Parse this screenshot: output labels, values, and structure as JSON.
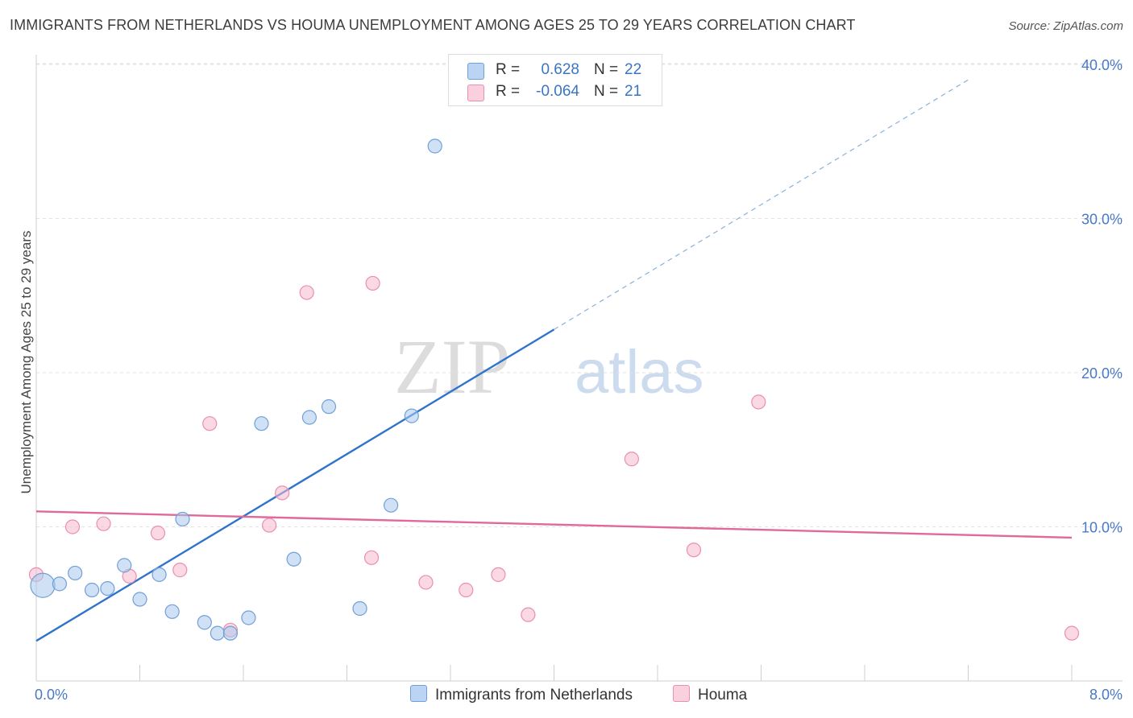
{
  "title": "IMMIGRANTS FROM NETHERLANDS VS HOUMA UNEMPLOYMENT AMONG AGES 25 TO 29 YEARS CORRELATION CHART",
  "source": "Source: ZipAtlas.com",
  "watermark": {
    "zip": "ZIP",
    "atlas": "atlas"
  },
  "colors": {
    "blue": "#a9c8ee",
    "blue_stroke": "#6fa0d8",
    "blue_line": "#2f74cc",
    "pink": "#f5b9cd",
    "pink_stroke": "#ea8fae",
    "pink_line": "#e0699a",
    "tick_text": "#4878c8"
  },
  "stats": [
    {
      "r_label": "R =",
      "r_value": "0.628",
      "n_label": "N =",
      "n_value": "22"
    },
    {
      "r_label": "R =",
      "r_value": "-0.064",
      "n_label": "N =",
      "n_value": "21"
    }
  ],
  "legend": [
    {
      "label": "Immigrants from Netherlands"
    },
    {
      "label": "Houma"
    }
  ],
  "chart_data": {
    "type": "scatter",
    "title": "IMMIGRANTS FROM NETHERLANDS VS HOUMA UNEMPLOYMENT AMONG AGES 25 TO 29 YEARS CORRELATION CHART",
    "xlabel": "",
    "ylabel": "Unemployment Among Ages 25 to 29 years",
    "xlim": [
      0,
      8
    ],
    "ylim": [
      0,
      40
    ],
    "x_ticks": [
      {
        "value": 0,
        "label": "0.0%"
      },
      {
        "value": 8,
        "label": "8.0%"
      }
    ],
    "y_ticks": [
      {
        "value": 10,
        "label": "10.0%"
      },
      {
        "value": 20,
        "label": "20.0%"
      },
      {
        "value": 30,
        "label": "30.0%"
      },
      {
        "value": 40,
        "label": "40.0%"
      }
    ],
    "series": [
      {
        "name": "Immigrants from Netherlands",
        "points": [
          {
            "x": 0.05,
            "y": 6.2,
            "big": true
          },
          {
            "x": 0.18,
            "y": 6.3
          },
          {
            "x": 0.3,
            "y": 7.0
          },
          {
            "x": 0.43,
            "y": 5.9
          },
          {
            "x": 0.55,
            "y": 6.0
          },
          {
            "x": 0.68,
            "y": 7.5
          },
          {
            "x": 0.8,
            "y": 5.3
          },
          {
            "x": 0.95,
            "y": 6.9
          },
          {
            "x": 1.05,
            "y": 4.5
          },
          {
            "x": 1.13,
            "y": 10.5
          },
          {
            "x": 1.3,
            "y": 3.8
          },
          {
            "x": 1.4,
            "y": 3.1
          },
          {
            "x": 1.5,
            "y": 3.1
          },
          {
            "x": 1.64,
            "y": 4.1
          },
          {
            "x": 1.74,
            "y": 16.7
          },
          {
            "x": 1.99,
            "y": 7.9
          },
          {
            "x": 2.11,
            "y": 17.1
          },
          {
            "x": 2.26,
            "y": 17.8
          },
          {
            "x": 2.5,
            "y": 4.7
          },
          {
            "x": 2.74,
            "y": 11.4
          },
          {
            "x": 2.9,
            "y": 17.2
          },
          {
            "x": 3.08,
            "y": 34.7
          }
        ],
        "trend": {
          "x0": 0,
          "y0": 2.6,
          "x1": 4,
          "y1": 22.8,
          "x_dash_end": 7.2,
          "y_dash_end": 39.0
        }
      },
      {
        "name": "Houma",
        "points": [
          {
            "x": 0.0,
            "y": 6.9
          },
          {
            "x": 0.28,
            "y": 10.0
          },
          {
            "x": 0.52,
            "y": 10.2
          },
          {
            "x": 0.72,
            "y": 6.8
          },
          {
            "x": 0.94,
            "y": 9.6
          },
          {
            "x": 1.11,
            "y": 7.2
          },
          {
            "x": 1.34,
            "y": 16.7
          },
          {
            "x": 1.5,
            "y": 3.3
          },
          {
            "x": 1.8,
            "y": 10.1
          },
          {
            "x": 1.9,
            "y": 12.2
          },
          {
            "x": 2.09,
            "y": 25.2
          },
          {
            "x": 2.59,
            "y": 8.0
          },
          {
            "x": 2.6,
            "y": 25.8
          },
          {
            "x": 3.01,
            "y": 6.4
          },
          {
            "x": 3.32,
            "y": 5.9
          },
          {
            "x": 3.57,
            "y": 6.9
          },
          {
            "x": 3.8,
            "y": 4.3
          },
          {
            "x": 4.6,
            "y": 14.4
          },
          {
            "x": 5.08,
            "y": 8.5
          },
          {
            "x": 5.58,
            "y": 18.1
          },
          {
            "x": 8.0,
            "y": 3.1
          }
        ],
        "trend": {
          "x0": 0,
          "y0": 11.0,
          "x1": 8,
          "y1": 9.3
        }
      }
    ]
  }
}
